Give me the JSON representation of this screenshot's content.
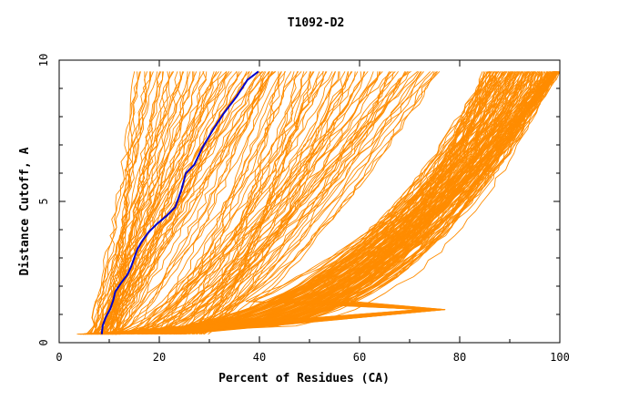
{
  "chart_data": {
    "type": "line",
    "title": "T1092-D2",
    "xlabel": "Percent of Residues (CA)",
    "ylabel": "Distance Cutoff, A",
    "xlim": [
      0,
      100
    ],
    "ylim": [
      0,
      10
    ],
    "x_ticks": [
      0,
      20,
      40,
      60,
      80,
      100
    ],
    "y_ticks": [
      0,
      5,
      10
    ],
    "grid": false,
    "legend": "none",
    "colors": {
      "background_curves": "#ff8c00",
      "highlight": "#0000cc",
      "axes": "#000000"
    },
    "highlight_series": {
      "x": [
        8.5,
        8.7,
        9.3,
        10.2,
        10.8,
        11.2,
        12.3,
        13.6,
        14.4,
        15.0,
        15.6,
        16.6,
        17.8,
        19.5,
        21.5,
        23.2,
        24.4,
        25.3,
        27.0,
        28.6,
        30.6,
        32.8,
        35.4,
        37.6,
        39.8
      ],
      "y": [
        0.3,
        0.6,
        0.9,
        1.2,
        1.5,
        1.8,
        2.1,
        2.4,
        2.7,
        3.0,
        3.3,
        3.6,
        3.9,
        4.2,
        4.5,
        4.8,
        5.4,
        6.0,
        6.3,
        6.9,
        7.5,
        8.1,
        8.7,
        9.3,
        9.6
      ]
    },
    "background_series_groups": [
      {
        "count": 60,
        "x_start": [
          6,
          12
        ],
        "x_end": [
          15,
          44
        ],
        "shape": "steep"
      },
      {
        "count": 70,
        "x_start": [
          10,
          30
        ],
        "x_end": [
          40,
          76
        ],
        "shape": "diagonal"
      },
      {
        "count": 120,
        "x_start": [
          4,
          12
        ],
        "x_end": [
          85,
          100
        ],
        "shape": "flat"
      },
      {
        "count": 35,
        "x_start": [
          8,
          25
        ],
        "x_end": [
          98,
          100
        ],
        "shape": "bulge"
      }
    ]
  }
}
